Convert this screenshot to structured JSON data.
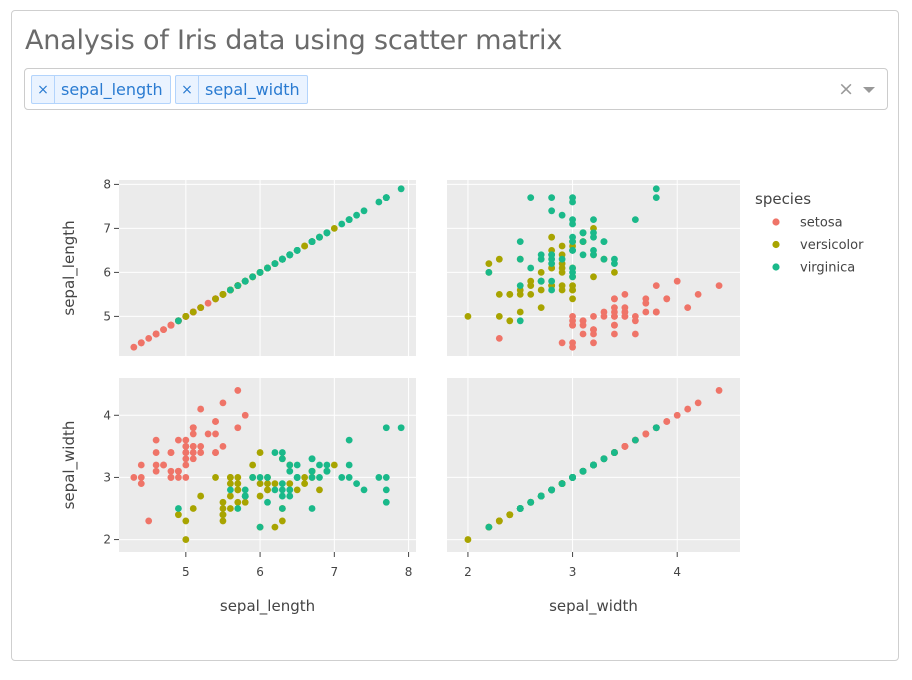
{
  "header": {
    "title": "Analysis of Iris data using scatter matrix"
  },
  "dropdown": {
    "selected": [
      {
        "label": "sepal_length",
        "remove_glyph": "×"
      },
      {
        "label": "sepal_width",
        "remove_glyph": "×"
      }
    ],
    "clear_glyph": "×"
  },
  "chart_data": {
    "type": "scatter",
    "matrix": true,
    "dimensions": [
      "sepal_length",
      "sepal_width"
    ],
    "axes": {
      "sepal_length": {
        "range": [
          4.1,
          8.1
        ],
        "ticks": [
          5,
          6,
          7,
          8
        ]
      },
      "sepal_width": {
        "range": [
          1.8,
          4.6
        ],
        "ticks": [
          2,
          3,
          4
        ]
      }
    },
    "grid": true,
    "legend": {
      "title": "species",
      "placement": "right"
    },
    "series": [
      {
        "name": "setosa",
        "color": "#EF7468",
        "points": [
          [
            5.1,
            3.5
          ],
          [
            4.9,
            3.0
          ],
          [
            4.7,
            3.2
          ],
          [
            4.6,
            3.1
          ],
          [
            5.0,
            3.6
          ],
          [
            5.4,
            3.9
          ],
          [
            4.6,
            3.4
          ],
          [
            5.0,
            3.4
          ],
          [
            4.4,
            2.9
          ],
          [
            4.9,
            3.1
          ],
          [
            5.4,
            3.7
          ],
          [
            4.8,
            3.4
          ],
          [
            4.8,
            3.0
          ],
          [
            4.3,
            3.0
          ],
          [
            5.8,
            4.0
          ],
          [
            5.7,
            4.4
          ],
          [
            5.4,
            3.9
          ],
          [
            5.1,
            3.5
          ],
          [
            5.7,
            3.8
          ],
          [
            5.1,
            3.8
          ],
          [
            5.4,
            3.4
          ],
          [
            5.1,
            3.7
          ],
          [
            4.6,
            3.6
          ],
          [
            5.1,
            3.3
          ],
          [
            4.8,
            3.4
          ],
          [
            5.0,
            3.0
          ],
          [
            5.0,
            3.4
          ],
          [
            5.2,
            3.5
          ],
          [
            5.2,
            3.4
          ],
          [
            4.7,
            3.2
          ],
          [
            4.8,
            3.1
          ],
          [
            5.4,
            3.4
          ],
          [
            5.2,
            4.1
          ],
          [
            5.5,
            4.2
          ],
          [
            4.9,
            3.1
          ],
          [
            5.0,
            3.2
          ],
          [
            5.5,
            3.5
          ],
          [
            4.9,
            3.6
          ],
          [
            4.4,
            3.0
          ],
          [
            5.1,
            3.4
          ],
          [
            5.0,
            3.5
          ],
          [
            4.5,
            2.3
          ],
          [
            4.4,
            3.2
          ],
          [
            5.0,
            3.5
          ],
          [
            5.1,
            3.8
          ],
          [
            4.8,
            3.0
          ],
          [
            5.1,
            3.8
          ],
          [
            4.6,
            3.2
          ],
          [
            5.3,
            3.7
          ],
          [
            5.0,
            3.3
          ]
        ]
      },
      {
        "name": "versicolor",
        "color": "#A8A400",
        "points": [
          [
            7.0,
            3.2
          ],
          [
            6.4,
            3.2
          ],
          [
            6.9,
            3.1
          ],
          [
            5.5,
            2.3
          ],
          [
            6.5,
            2.8
          ],
          [
            5.7,
            2.8
          ],
          [
            6.3,
            3.3
          ],
          [
            4.9,
            2.4
          ],
          [
            6.6,
            2.9
          ],
          [
            5.2,
            2.7
          ],
          [
            5.0,
            2.0
          ],
          [
            5.9,
            3.0
          ],
          [
            6.0,
            2.2
          ],
          [
            6.1,
            2.9
          ],
          [
            5.6,
            2.9
          ],
          [
            6.7,
            3.1
          ],
          [
            5.6,
            3.0
          ],
          [
            5.8,
            2.7
          ],
          [
            6.2,
            2.2
          ],
          [
            5.6,
            2.5
          ],
          [
            5.9,
            3.2
          ],
          [
            6.1,
            2.8
          ],
          [
            6.3,
            2.5
          ],
          [
            6.1,
            2.8
          ],
          [
            6.4,
            2.9
          ],
          [
            6.6,
            3.0
          ],
          [
            6.8,
            2.8
          ],
          [
            6.7,
            3.0
          ],
          [
            6.0,
            2.9
          ],
          [
            5.7,
            2.6
          ],
          [
            5.5,
            2.4
          ],
          [
            5.5,
            2.4
          ],
          [
            5.8,
            2.7
          ],
          [
            6.0,
            2.7
          ],
          [
            5.4,
            3.0
          ],
          [
            6.0,
            3.4
          ],
          [
            6.7,
            3.1
          ],
          [
            6.3,
            2.3
          ],
          [
            5.6,
            3.0
          ],
          [
            5.5,
            2.5
          ],
          [
            5.5,
            2.6
          ],
          [
            6.1,
            3.0
          ],
          [
            5.8,
            2.6
          ],
          [
            5.0,
            2.3
          ],
          [
            5.6,
            2.7
          ],
          [
            5.7,
            3.0
          ],
          [
            5.7,
            2.9
          ],
          [
            6.2,
            2.9
          ],
          [
            5.1,
            2.5
          ],
          [
            5.7,
            2.8
          ]
        ]
      },
      {
        "name": "virginica",
        "color": "#1AB98A",
        "points": [
          [
            6.3,
            3.3
          ],
          [
            5.8,
            2.7
          ],
          [
            7.1,
            3.0
          ],
          [
            6.3,
            2.9
          ],
          [
            6.5,
            3.0
          ],
          [
            7.6,
            3.0
          ],
          [
            4.9,
            2.5
          ],
          [
            7.3,
            2.9
          ],
          [
            6.7,
            2.5
          ],
          [
            7.2,
            3.6
          ],
          [
            6.5,
            3.2
          ],
          [
            6.4,
            2.7
          ],
          [
            6.8,
            3.0
          ],
          [
            5.7,
            2.5
          ],
          [
            5.8,
            2.8
          ],
          [
            6.4,
            3.2
          ],
          [
            6.5,
            3.0
          ],
          [
            7.7,
            3.8
          ],
          [
            7.7,
            2.6
          ],
          [
            6.0,
            2.2
          ],
          [
            6.9,
            3.2
          ],
          [
            5.6,
            2.8
          ],
          [
            7.7,
            2.8
          ],
          [
            6.3,
            2.7
          ],
          [
            6.7,
            3.3
          ],
          [
            7.2,
            3.2
          ],
          [
            6.2,
            2.8
          ],
          [
            6.1,
            3.0
          ],
          [
            6.4,
            2.8
          ],
          [
            7.2,
            3.0
          ],
          [
            7.4,
            2.8
          ],
          [
            7.9,
            3.8
          ],
          [
            6.4,
            2.8
          ],
          [
            6.3,
            2.8
          ],
          [
            6.1,
            2.6
          ],
          [
            7.7,
            3.0
          ],
          [
            6.3,
            3.4
          ],
          [
            6.4,
            3.1
          ],
          [
            6.0,
            3.0
          ],
          [
            6.9,
            3.1
          ],
          [
            6.7,
            3.1
          ],
          [
            6.9,
            3.1
          ],
          [
            5.8,
            2.7
          ],
          [
            6.8,
            3.2
          ],
          [
            6.7,
            3.3
          ],
          [
            6.7,
            3.0
          ],
          [
            6.3,
            2.5
          ],
          [
            6.5,
            3.0
          ],
          [
            6.2,
            3.4
          ],
          [
            5.9,
            3.0
          ]
        ]
      }
    ]
  }
}
